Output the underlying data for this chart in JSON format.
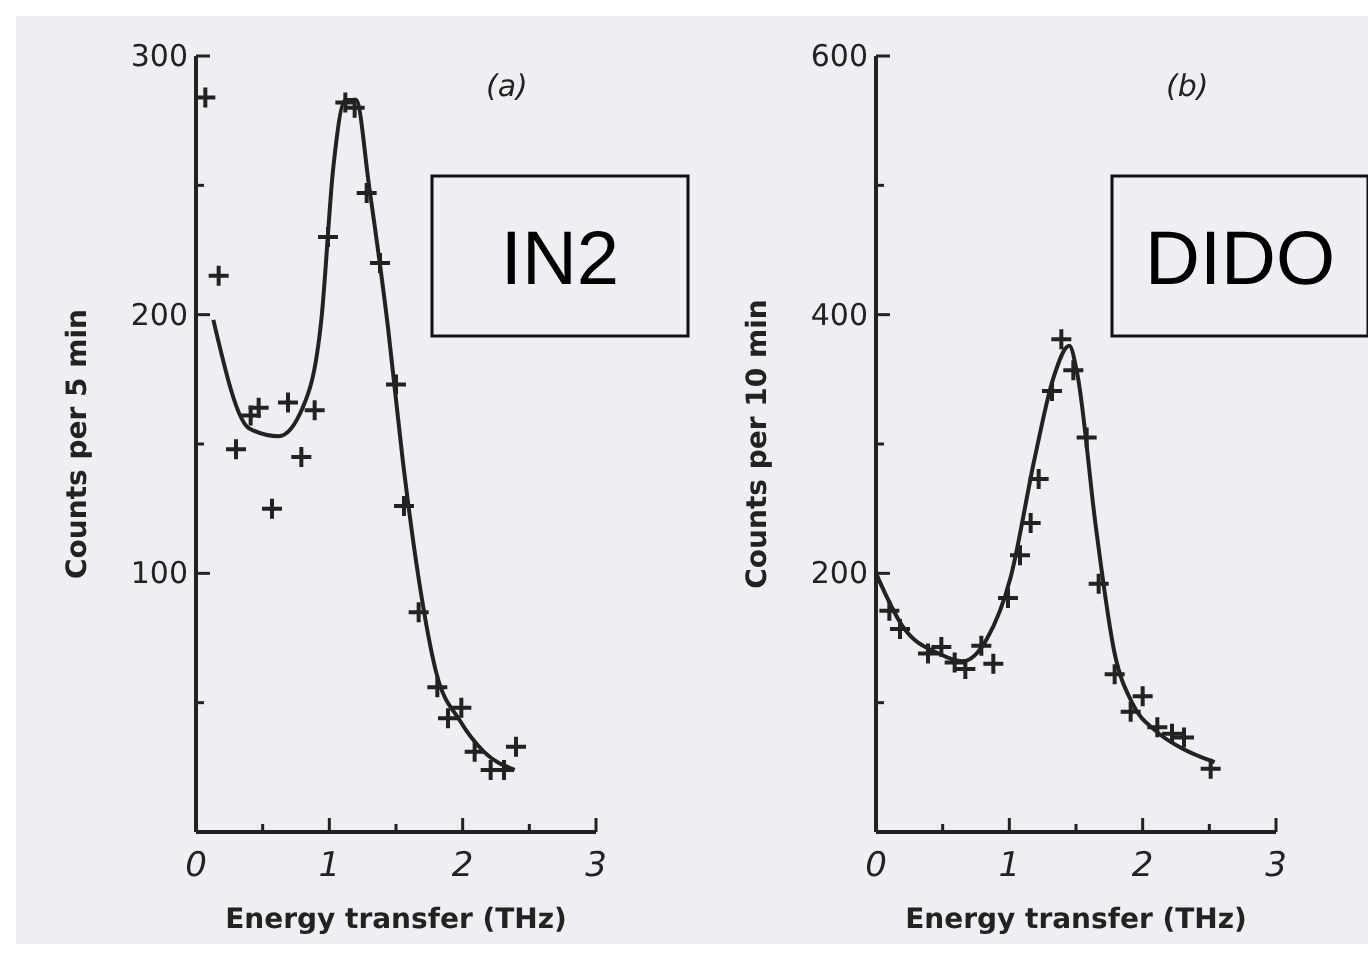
{
  "chart_data": [
    {
      "type": "scatter",
      "xlabel": "Energy transfer (THz)",
      "ylabel": "Counts per 5 min",
      "annotations": [
        "(a)",
        "IN2"
      ],
      "xlim": [
        0,
        3
      ],
      "ylim": [
        0,
        300
      ],
      "xticks": [
        0,
        {
          "value": 0.5,
          "label": null
        },
        1,
        {
          "value": 1.5,
          "label": null
        },
        2,
        {
          "value": 2.5,
          "label": null
        },
        3
      ],
      "yticks": [
        {
          "value": 50,
          "label": null
        },
        100,
        {
          "value": 150,
          "label": null
        },
        200,
        {
          "value": 250,
          "label": null
        },
        300
      ],
      "grid": false,
      "series": [
        {
          "marker": "cross",
          "color": "#222222",
          "x": [
            0.07,
            0.17,
            0.3,
            0.41,
            0.47,
            0.57,
            0.69,
            0.79,
            0.89,
            0.99,
            1.12,
            1.19,
            1.28,
            1.38,
            1.5,
            1.56,
            1.67,
            1.81,
            1.89,
            1.99,
            2.09,
            2.21,
            2.31,
            2.4
          ],
          "values": [
            284,
            215,
            148,
            161,
            164,
            125,
            166,
            145,
            163,
            230,
            282,
            280,
            247,
            220,
            173,
            126,
            85,
            56,
            44,
            48,
            31,
            24,
            24,
            33
          ]
        },
        {
          "type": "line",
          "marker": "none",
          "color": "#222222",
          "line_style": "solid",
          "x": [
            0.13,
            0.4,
            0.62,
            0.8,
            0.94,
            1.03,
            1.12,
            1.2,
            1.3,
            1.44,
            1.55,
            1.67,
            1.8,
            1.98,
            2.16,
            2.39
          ],
          "values": [
            198,
            156,
            153,
            164,
            198,
            257,
            283,
            283,
            249,
            195,
            144,
            98,
            62,
            43,
            31,
            24
          ]
        }
      ]
    },
    {
      "type": "scatter",
      "xlabel": "Energy transfer (THz)",
      "ylabel": "Counts per 10 min",
      "annotations": [
        "(b)",
        "DIDO"
      ],
      "xlim": [
        0,
        3
      ],
      "ylim": [
        0,
        600
      ],
      "xticks": [
        0,
        {
          "value": 0.5,
          "label": null
        },
        1,
        {
          "value": 1.5,
          "label": null
        },
        2,
        {
          "value": 2.5,
          "label": null
        },
        3
      ],
      "yticks": [
        {
          "value": 100,
          "label": null
        },
        200,
        {
          "value": 300,
          "label": null
        },
        400,
        {
          "value": 500,
          "label": null
        },
        600
      ],
      "grid": false,
      "series": [
        {
          "marker": "cross",
          "color": "#222222",
          "x": [
            0.1,
            0.18,
            0.39,
            0.49,
            0.59,
            0.67,
            0.79,
            0.88,
            0.99,
            1.08,
            1.16,
            1.22,
            1.32,
            1.39,
            1.48,
            1.58,
            1.67,
            1.79,
            1.91,
            2.0,
            2.11,
            2.22,
            2.31,
            2.51
          ],
          "values": [
            171,
            157,
            138,
            143,
            131,
            126,
            144,
            130,
            181,
            214,
            239,
            273,
            341,
            381,
            357,
            305,
            192,
            122,
            93,
            105,
            81,
            76,
            73,
            49
          ]
        },
        {
          "type": "line",
          "marker": "none",
          "color": "#222222",
          "line_style": "solid",
          "x": [
            0,
            0.2,
            0.47,
            0.65,
            0.83,
            1.01,
            1.19,
            1.33,
            1.45,
            1.51,
            1.65,
            1.79,
            1.92,
            2.1,
            2.29,
            2.54
          ],
          "values": [
            200,
            159,
            138,
            132,
            149,
            197,
            289,
            351,
            376,
            354,
            235,
            138,
            100,
            78,
            65,
            54
          ]
        }
      ]
    }
  ]
}
